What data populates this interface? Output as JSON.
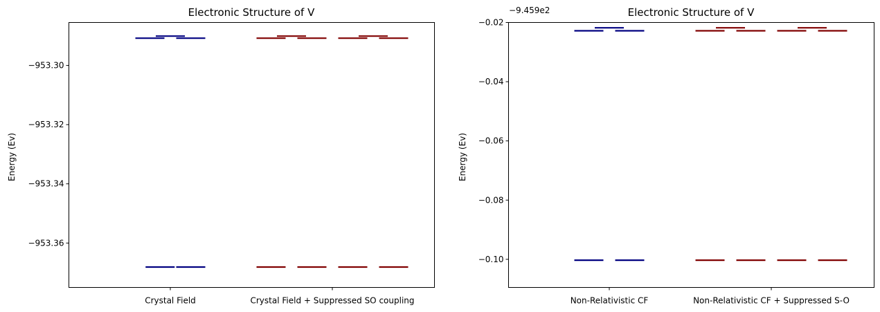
{
  "chart_data": [
    {
      "type": "energy-level",
      "title": "Electronic Structure of V",
      "ylabel": "Energy (Ev)",
      "ylim": [
        -953.375,
        -953.2855
      ],
      "yticks": [
        -953.3,
        -953.32,
        -953.34,
        -953.36
      ],
      "ytick_labels": [
        "−953.30",
        "−953.32",
        "−953.34",
        "−953.36"
      ],
      "offset_label": "",
      "categories": [
        "Crystal Field",
        "Crystal Field + Suppressed SO coupling"
      ],
      "colors": {
        "Crystal Field": "#000080",
        "Crystal Field + Suppressed SO coupling": "#800000"
      },
      "levels": [
        {
          "group": 0,
          "slot": 0,
          "energy": -953.2908
        },
        {
          "group": 0,
          "slot": 1,
          "energy": -953.2901
        },
        {
          "group": 0,
          "slot": 2,
          "energy": -953.2908
        },
        {
          "group": 0,
          "slot": 0.5,
          "energy": -953.3681
        },
        {
          "group": 0,
          "slot": 2,
          "energy": -953.3681
        },
        {
          "group": 1,
          "slot": 0,
          "energy": -953.2908
        },
        {
          "group": 1,
          "slot": 1,
          "energy": -953.2901
        },
        {
          "group": 1,
          "slot": 2,
          "energy": -953.2908
        },
        {
          "group": 1,
          "slot": 4,
          "energy": -953.2908
        },
        {
          "group": 1,
          "slot": 5,
          "energy": -953.2901
        },
        {
          "group": 1,
          "slot": 6,
          "energy": -953.2908
        },
        {
          "group": 1,
          "slot": 0,
          "energy": -953.3681
        },
        {
          "group": 1,
          "slot": 2,
          "energy": -953.3681
        },
        {
          "group": 1,
          "slot": 4,
          "energy": -953.3681
        },
        {
          "group": 1,
          "slot": 6,
          "energy": -953.3681
        }
      ]
    },
    {
      "type": "energy-level",
      "title": "Electronic Structure of V",
      "ylabel": "Energy (Ev)",
      "ylim": [
        -0.1095,
        -0.02
      ],
      "yticks": [
        -0.02,
        -0.04,
        -0.06,
        -0.08,
        -0.1
      ],
      "ytick_labels": [
        "−0.02",
        "−0.04",
        "−0.06",
        "−0.08",
        "−0.10"
      ],
      "offset_label": "−9.459e2",
      "categories": [
        "Non-Relativistic CF",
        "Non-Relativistic CF + Suppressed S-O"
      ],
      "colors": {
        "Non-Relativistic CF": "#000080",
        "Non-Relativistic CF + Suppressed S-O": "#800000"
      },
      "levels": [
        {
          "group": 0,
          "slot": 0,
          "energy": -0.0228
        },
        {
          "group": 0,
          "slot": 1,
          "energy": -0.0218
        },
        {
          "group": 0,
          "slot": 2,
          "energy": -0.0228
        },
        {
          "group": 0,
          "slot": 0,
          "energy": -0.1003
        },
        {
          "group": 0,
          "slot": 2,
          "energy": -0.1003
        },
        {
          "group": 1,
          "slot": 0,
          "energy": -0.0228
        },
        {
          "group": 1,
          "slot": 1,
          "energy": -0.0218
        },
        {
          "group": 1,
          "slot": 2,
          "energy": -0.0228
        },
        {
          "group": 1,
          "slot": 4,
          "energy": -0.0228
        },
        {
          "group": 1,
          "slot": 5,
          "energy": -0.0218
        },
        {
          "group": 1,
          "slot": 6,
          "energy": -0.0228
        },
        {
          "group": 1,
          "slot": 0,
          "energy": -0.1003
        },
        {
          "group": 1,
          "slot": 2,
          "energy": -0.1003
        },
        {
          "group": 1,
          "slot": 4,
          "energy": -0.1003
        },
        {
          "group": 1,
          "slot": 6,
          "energy": -0.1003
        }
      ]
    }
  ]
}
